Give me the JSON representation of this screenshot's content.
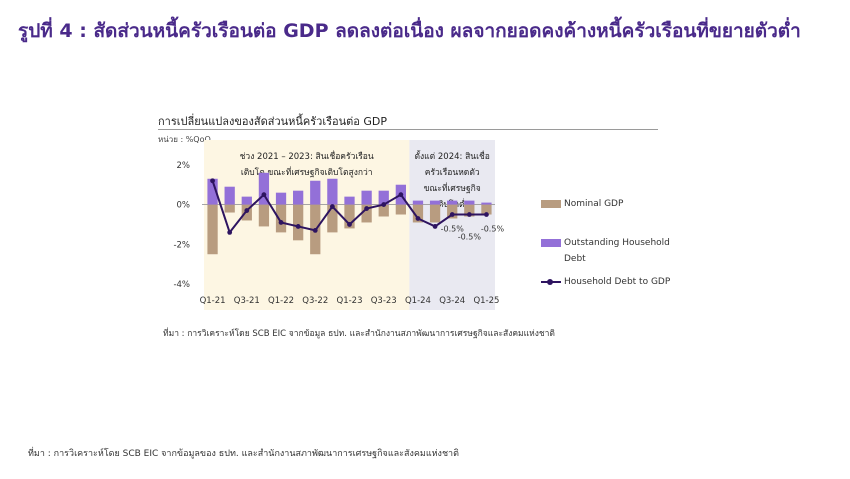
{
  "figure_title": "รูปที่ 4 : สัดส่วนหนี้ครัวเรือนต่อ GDP ลดลงต่อเนื่อง ผลจากยอดคงค้างหนี้ครัวเรือนที่ขยายตัวต่ำ",
  "chart_data": {
    "type": "bar",
    "title": "การเปลี่ยนแปลงของสัดส่วนหนี้ครัวเรือนต่อ GDP",
    "unit_label": "หน่วย : %QoQ",
    "categories": [
      "Q1-21",
      "Q2-21",
      "Q3-21",
      "Q4-21",
      "Q1-22",
      "Q2-22",
      "Q3-22",
      "Q4-22",
      "Q1-23",
      "Q2-23",
      "Q3-23",
      "Q4-23",
      "Q1-24",
      "Q2-24",
      "Q3-24",
      "Q4-24",
      "Q1-25"
    ],
    "x_tick_labels": [
      "Q1-21",
      "Q3-21",
      "Q1-22",
      "Q3-22",
      "Q1-23",
      "Q3-23",
      "Q1-24",
      "Q3-24",
      "Q1-25"
    ],
    "y_tick_labels": [
      "2%",
      "0%",
      "-2%",
      "-4%"
    ],
    "ylim": [
      -4.2,
      3.0
    ],
    "series": [
      {
        "name": "Nominal GDP",
        "type": "bar",
        "color": "#b89c80",
        "values": [
          -2.5,
          -0.4,
          -0.8,
          -1.1,
          -1.4,
          -1.8,
          -2.5,
          -1.4,
          -1.2,
          -0.9,
          -0.6,
          -0.5,
          -0.9,
          -0.9,
          -0.7,
          -0.6,
          -0.5
        ]
      },
      {
        "name": "Outstanding Household Debt",
        "type": "bar",
        "color": "#9370d8",
        "values": [
          1.3,
          0.9,
          0.4,
          1.6,
          0.6,
          0.7,
          1.2,
          1.3,
          0.4,
          0.7,
          0.7,
          1.0,
          0.2,
          0.2,
          0.2,
          0.2,
          0.1
        ]
      },
      {
        "name": "Household Debt to GDP",
        "type": "line",
        "color": "#2e1460",
        "values": [
          1.2,
          -1.4,
          -0.3,
          0.5,
          -0.9,
          -1.1,
          -1.3,
          -0.1,
          -1.0,
          -0.2,
          0.0,
          0.5,
          -0.7,
          -1.1,
          -0.5,
          -0.5,
          -0.5
        ]
      }
    ],
    "shaded_periods": [
      {
        "label_lines": [
          "ช่วง 2021 – 2023: สินเชื่อครัวเรือน",
          "เติบโต ขณะที่เศรษฐกิจเติบโตสูงกว่า"
        ],
        "from": 0,
        "to": 11,
        "color": "#fdf6e3"
      },
      {
        "label_lines": [
          "ตั้งแต่ 2024: สินเชื่อ",
          "ครัวเรือนหดตัว",
          "ขณะที่เศรษฐกิจ",
          "เติบโตต่ำ"
        ],
        "from": 12,
        "to": 16,
        "color": "#e9e9f1"
      }
    ],
    "annotations": [
      {
        "text": "-0.5%",
        "index": 14
      },
      {
        "text": "-0.5%",
        "index": 15
      },
      {
        "text": "-0.5%",
        "index": 16
      }
    ],
    "legend_position": "right"
  },
  "source_inner": "ที่มา : การวิเคราะห์โดย SCB EIC จากข้อมูล ธปท. และสำนักงานสภาพัฒนาการเศรษฐกิจและสังคมแห่งชาติ",
  "source_outer": "ที่มา : การวิเคราะห์โดย SCB EIC จากข้อมูลของ ธปท. และสำนักงานสภาพัฒนาการเศรษฐกิจและสังคมแห่งชาติ"
}
